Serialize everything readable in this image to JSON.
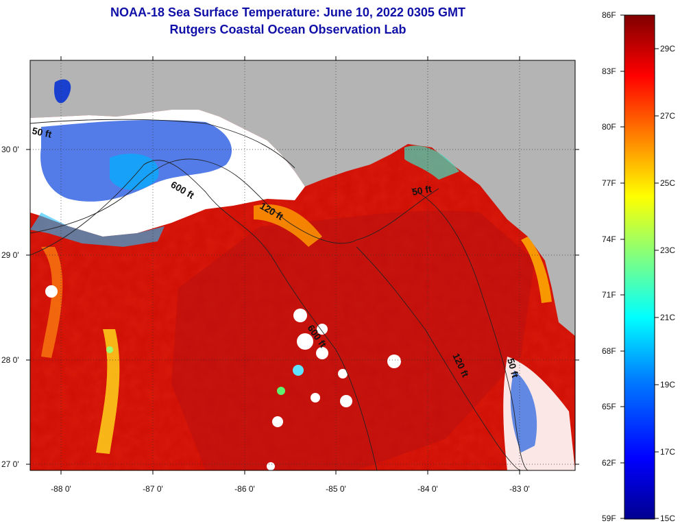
{
  "title": {
    "line1": "NOAA-18 Sea Surface Temperature:  June 10, 2022 0305 GMT",
    "line2": "Rutgers Coastal Ocean Observation Lab"
  },
  "map": {
    "lon_ticks": [
      "-88 0'",
      "-87 0'",
      "-86 0'",
      "-85 0'",
      "-84 0'",
      "-83 0'"
    ],
    "lat_ticks": [
      "30 0'",
      "29 0'",
      "28 0'",
      "27 0'"
    ],
    "contours": {
      "label_50a": "50 ft",
      "label_600a": "600 ft",
      "label_120a": "120 ft",
      "label_50b": "50 ft",
      "label_600b": "600 ft",
      "label_120b": "120 ft",
      "label_50c": "50 ft"
    }
  },
  "colorbar": {
    "f_labels": [
      "86F",
      "83F",
      "80F",
      "77F",
      "74F",
      "71F",
      "68F",
      "65F",
      "62F",
      "59F"
    ],
    "c_labels": [
      "29C",
      "27C",
      "25C",
      "23C",
      "21C",
      "19C",
      "17C",
      "15C"
    ],
    "colors": {
      "top": "#800000",
      "red": "#ff0000",
      "orange": "#ff8000",
      "yellow": "#ffff00",
      "cyan": "#00ffff",
      "blue": "#0040ff",
      "bottom": "#00008f"
    }
  },
  "colors": {
    "land": "#b4b4b4",
    "cloud": "#ffffff",
    "water_warm": "#e01a0a",
    "water_hot": "#b80d0d",
    "title": "#1010a8"
  }
}
